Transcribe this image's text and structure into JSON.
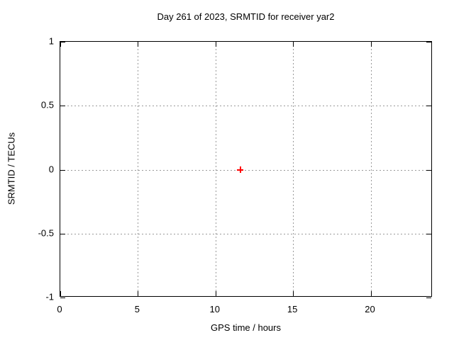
{
  "chart_data": {
    "type": "scatter",
    "title": "Day 261 of 2023, SRMTID for receiver yar2",
    "xlabel": "GPS time / hours",
    "ylabel": "SRMTID / TECUs",
    "xlim": [
      0,
      24
    ],
    "ylim": [
      -1,
      1
    ],
    "xticks": [
      {
        "value": 0,
        "label": "0"
      },
      {
        "value": 5,
        "label": "5"
      },
      {
        "value": 10,
        "label": "10"
      },
      {
        "value": 15,
        "label": "15"
      },
      {
        "value": 20,
        "label": "20"
      }
    ],
    "yticks": [
      {
        "value": 1,
        "label": "1"
      },
      {
        "value": 0.5,
        "label": "0.5"
      },
      {
        "value": 0,
        "label": "0"
      },
      {
        "value": -0.5,
        "label": "-0.5"
      },
      {
        "value": -1,
        "label": "-1"
      }
    ],
    "grid": true,
    "legend_position": "none",
    "colors": {
      "background": "#ffffff",
      "axis": "#000000",
      "text": "#000000",
      "grid": "#9a9a9a"
    },
    "series": [
      {
        "name": "SRMTID",
        "marker": "plus",
        "color": "#ff0000",
        "points": [
          {
            "x": 11.6,
            "y": 0
          }
        ]
      }
    ]
  }
}
